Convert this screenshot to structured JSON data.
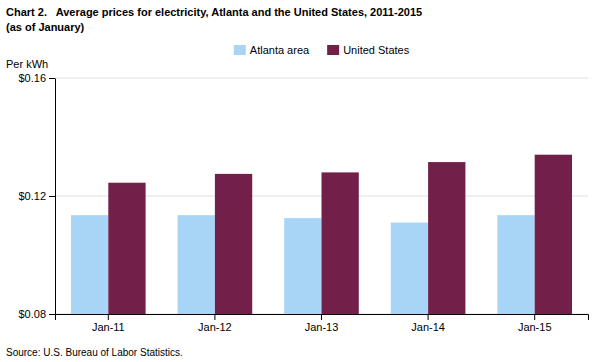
{
  "chart_data": {
    "type": "bar",
    "title": "Chart 2.   Average prices for electricity, Atlanta and the United States, 2011-2015",
    "subtitle": "(as of January)",
    "y_label": "Per kWh",
    "source": "Source: U.S. Bureau of Labor Statistics.",
    "categories": [
      "Jan-11",
      "Jan-12",
      "Jan-13",
      "Jan-14",
      "Jan-15"
    ],
    "series": [
      {
        "name": "Atlanta area",
        "color": "#a8d4f5",
        "values": [
          0.1135,
          0.1135,
          0.1125,
          0.111,
          0.1135
        ]
      },
      {
        "name": "United States",
        "color": "#72204a",
        "values": [
          0.1245,
          0.1275,
          0.128,
          0.1315,
          0.134
        ]
      }
    ],
    "ylim": [
      0.08,
      0.16
    ],
    "yticks": [
      {
        "value": 0.08,
        "label": "$0.08"
      },
      {
        "value": 0.12,
        "label": "$0.12"
      },
      {
        "value": 0.16,
        "label": "$0.16"
      }
    ],
    "grid": true,
    "legend": "top"
  }
}
